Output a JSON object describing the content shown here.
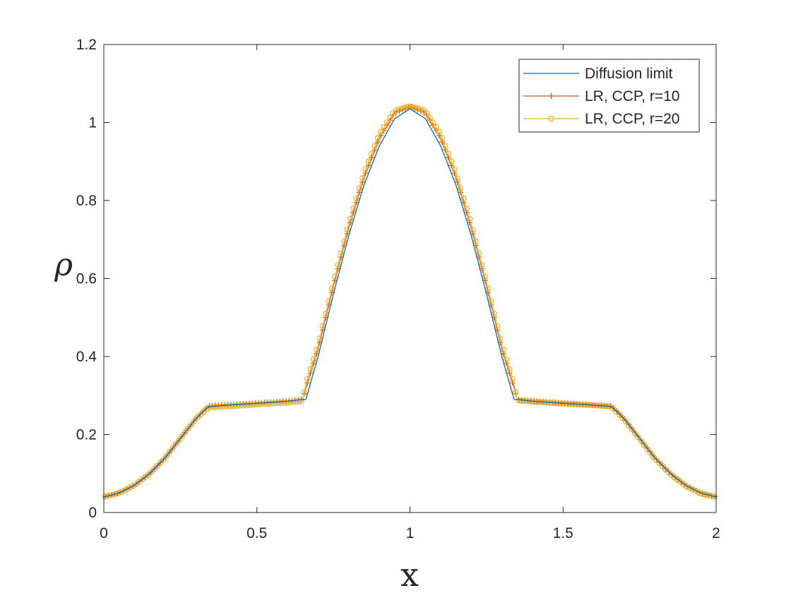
{
  "chart_data": {
    "type": "line",
    "title": "",
    "xlabel": "x",
    "ylabel": "ρ",
    "xlim": [
      0,
      2
    ],
    "ylim": [
      0,
      1.2
    ],
    "x_ticks": [
      "0",
      "0.5",
      "1",
      "1.5",
      "2"
    ],
    "y_ticks": [
      "0",
      "0.2",
      "0.4",
      "0.6",
      "0.8",
      "1",
      "1.2"
    ],
    "grid": false,
    "legend_position": "top-right",
    "series": [
      {
        "name": "Diffusion limit",
        "color": "#0072BD",
        "marker": "none",
        "x": [
          0,
          0.05,
          0.1,
          0.15,
          0.2,
          0.25,
          0.3,
          0.34,
          0.35,
          0.4,
          0.5,
          0.6,
          0.65,
          0.66,
          0.7,
          0.75,
          0.8,
          0.85,
          0.9,
          0.95,
          1.0,
          1.05,
          1.1,
          1.15,
          1.2,
          1.25,
          1.3,
          1.34,
          1.35,
          1.4,
          1.5,
          1.6,
          1.65,
          1.66,
          1.7,
          1.75,
          1.8,
          1.85,
          1.9,
          1.95,
          2.0
        ],
        "y": [
          0.04,
          0.05,
          0.07,
          0.1,
          0.14,
          0.19,
          0.24,
          0.27,
          0.272,
          0.275,
          0.28,
          0.285,
          0.29,
          0.29,
          0.4,
          0.56,
          0.71,
          0.84,
          0.94,
          1.01,
          1.035,
          1.01,
          0.94,
          0.84,
          0.71,
          0.56,
          0.4,
          0.29,
          0.29,
          0.285,
          0.28,
          0.275,
          0.272,
          0.27,
          0.24,
          0.19,
          0.14,
          0.1,
          0.07,
          0.05,
          0.04
        ]
      },
      {
        "name": "LR, CCP, r=10",
        "color": "#D95319",
        "marker": "plus",
        "x": [
          0,
          0.05,
          0.1,
          0.15,
          0.2,
          0.25,
          0.3,
          0.34,
          0.35,
          0.4,
          0.5,
          0.6,
          0.65,
          0.66,
          0.7,
          0.75,
          0.8,
          0.85,
          0.9,
          0.95,
          1.0,
          1.05,
          1.1,
          1.15,
          1.2,
          1.25,
          1.3,
          1.34,
          1.35,
          1.4,
          1.5,
          1.6,
          1.65,
          1.66,
          1.7,
          1.75,
          1.8,
          1.85,
          1.9,
          1.95,
          2.0
        ],
        "y": [
          0.04,
          0.05,
          0.07,
          0.1,
          0.14,
          0.19,
          0.24,
          0.272,
          0.274,
          0.276,
          0.281,
          0.286,
          0.29,
          0.32,
          0.42,
          0.58,
          0.73,
          0.86,
          0.96,
          1.025,
          1.04,
          1.025,
          0.96,
          0.86,
          0.73,
          0.58,
          0.42,
          0.32,
          0.29,
          0.286,
          0.281,
          0.276,
          0.274,
          0.272,
          0.24,
          0.19,
          0.14,
          0.1,
          0.07,
          0.05,
          0.04
        ]
      },
      {
        "name": "LR, CCP, r=20",
        "color": "#EDB120",
        "marker": "circle",
        "x": [
          0,
          0.05,
          0.1,
          0.15,
          0.2,
          0.25,
          0.3,
          0.34,
          0.35,
          0.4,
          0.5,
          0.6,
          0.65,
          0.66,
          0.7,
          0.75,
          0.8,
          0.85,
          0.9,
          0.95,
          1.0,
          1.05,
          1.1,
          1.15,
          1.2,
          1.25,
          1.3,
          1.34,
          1.35,
          1.4,
          1.5,
          1.6,
          1.65,
          1.66,
          1.7,
          1.75,
          1.8,
          1.85,
          1.9,
          1.95,
          2.0
        ],
        "y": [
          0.04,
          0.05,
          0.07,
          0.1,
          0.14,
          0.19,
          0.24,
          0.268,
          0.27,
          0.272,
          0.277,
          0.282,
          0.286,
          0.33,
          0.43,
          0.59,
          0.74,
          0.87,
          0.97,
          1.03,
          1.042,
          1.03,
          0.97,
          0.87,
          0.74,
          0.59,
          0.43,
          0.33,
          0.288,
          0.284,
          0.279,
          0.275,
          0.272,
          0.27,
          0.238,
          0.188,
          0.138,
          0.098,
          0.068,
          0.048,
          0.04
        ]
      }
    ]
  }
}
